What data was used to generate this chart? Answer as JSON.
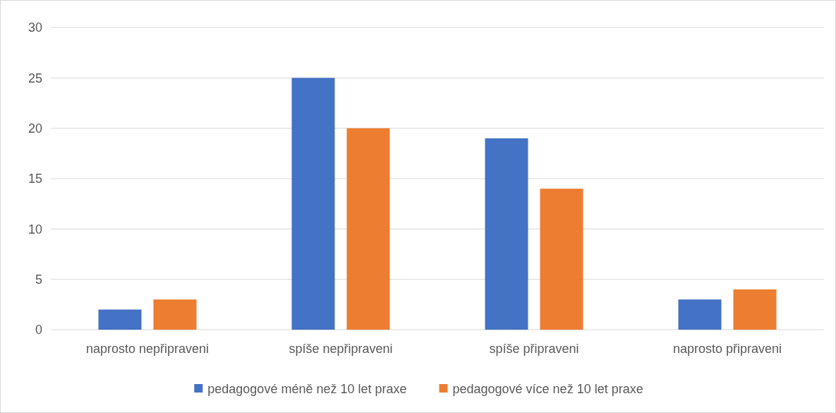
{
  "chart_data": {
    "type": "bar",
    "categories": [
      "naprosto nepřipraveni",
      "spíše nepřipraveni",
      "spíše připraveni",
      "naprosto připraveni"
    ],
    "series": [
      {
        "name": "pedagogové méně než 10 let praxe",
        "color": "#4472c4",
        "values": [
          2,
          25,
          19,
          3
        ]
      },
      {
        "name": "pedagogové více než 10 let praxe",
        "color": "#ed7d31",
        "values": [
          3,
          20,
          14,
          4
        ]
      }
    ],
    "ylim": [
      0,
      30
    ],
    "yticks": [
      0,
      5,
      10,
      15,
      20,
      25,
      30
    ],
    "grid": "y",
    "legend": "bottom"
  }
}
